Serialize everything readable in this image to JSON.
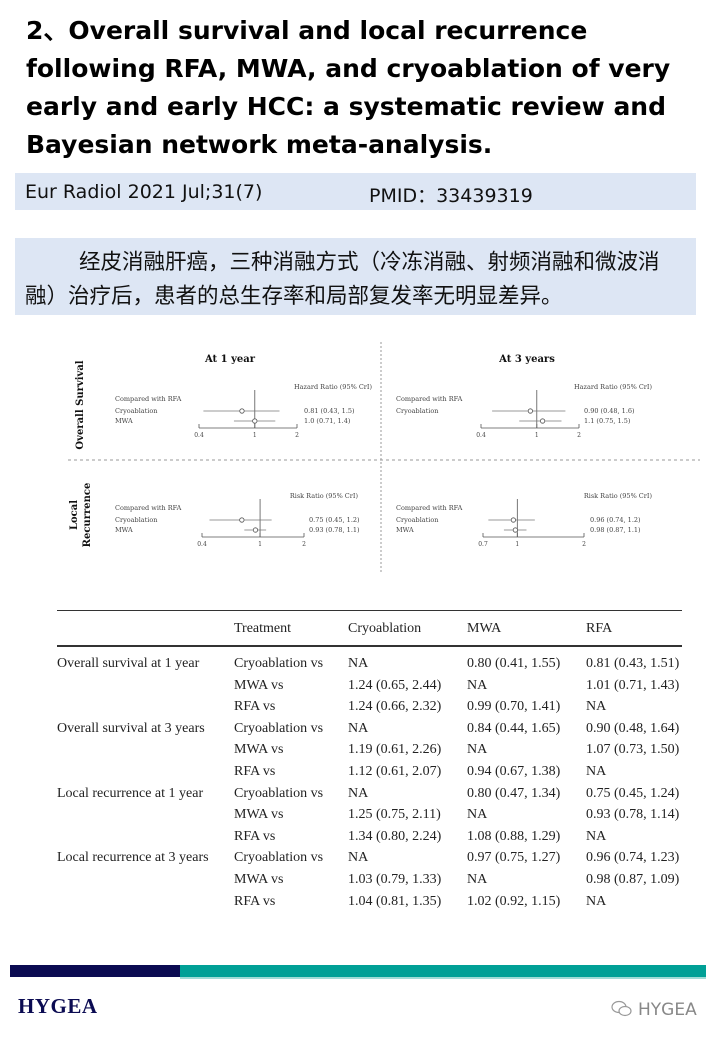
{
  "header": {
    "title": "2、Overall survival and local recurrence following RFA, MWA, and cryoablation of very early and early HCC: a systematic review and Bayesian network meta-analysis.",
    "journal": "Eur Radiol 2021 Jul;31(7)",
    "pmid": "PMID：33439319"
  },
  "summary": "经皮消融肝癌，三种消融方式（冷冻消融、射频消融和微波消融）治疗后，患者的总生存率和局部复发率无明显差异。",
  "chart_data": [
    {
      "type": "forest",
      "panel": "Overall Survival",
      "title": "At 1 year",
      "section_label": "Overall Survival",
      "compare_label": "Compared with RFA",
      "measure_label": "Hazard Ratio (95% CrI)",
      "x_scale": "log",
      "ticks": [
        0.4,
        1,
        2
      ],
      "xlim": [
        0.4,
        2
      ],
      "rows": [
        {
          "label": "Cryoablation",
          "est": 0.81,
          "lo": 0.43,
          "hi": 1.5,
          "text": "0.81 (0.43, 1.5)"
        },
        {
          "label": "MWA",
          "est": 1.0,
          "lo": 0.71,
          "hi": 1.4,
          "text": "1.0 (0.71, 1.4)"
        }
      ]
    },
    {
      "type": "forest",
      "panel": "Overall Survival",
      "title": "At 3 years",
      "section_label": "",
      "compare_label": "Compared with RFA",
      "measure_label": "Hazard Ratio (95% CrI)",
      "x_scale": "log",
      "ticks": [
        0.4,
        1,
        2
      ],
      "xlim": [
        0.4,
        2
      ],
      "rows": [
        {
          "label": "Cryoablation",
          "est": 0.9,
          "lo": 0.48,
          "hi": 1.6,
          "text": "0.90 (0.48, 1.6)"
        },
        {
          "label": "",
          "est": 1.1,
          "lo": 0.75,
          "hi": 1.5,
          "text": "1.1 (0.75, 1.5)"
        }
      ]
    },
    {
      "type": "forest",
      "panel": "Local Recurrence",
      "title": "",
      "section_label": "Local Recurrence",
      "compare_label": "Compared with RFA",
      "measure_label": "Risk Ratio (95% CrI)",
      "x_scale": "log",
      "ticks": [
        0.4,
        1,
        2
      ],
      "xlim": [
        0.4,
        2
      ],
      "rows": [
        {
          "label": "Cryoablation",
          "est": 0.75,
          "lo": 0.45,
          "hi": 1.2,
          "text": "0.75 (0.45, 1.2)"
        },
        {
          "label": "MWA",
          "est": 0.93,
          "lo": 0.78,
          "hi": 1.1,
          "text": "0.93 (0.78, 1.1)"
        }
      ]
    },
    {
      "type": "forest",
      "panel": "Local Recurrence",
      "title": "",
      "section_label": "",
      "compare_label": "Compared with RFA",
      "measure_label": "Risk Ratio (95% CrI)",
      "x_scale": "log",
      "ticks": [
        0.7,
        1,
        2
      ],
      "xlim": [
        0.7,
        2
      ],
      "rows": [
        {
          "label": "Cryoablation",
          "est": 0.96,
          "lo": 0.74,
          "hi": 1.2,
          "text": "0.96 (0.74, 1.2)"
        },
        {
          "label": "MWA",
          "est": 0.98,
          "lo": 0.87,
          "hi": 1.1,
          "text": "0.98 (0.87, 1.1)"
        }
      ]
    }
  ],
  "table": {
    "headers": [
      "",
      "Treatment",
      "Cryoablation",
      "MWA",
      "RFA"
    ],
    "rows": [
      [
        "Overall survival at 1 year",
        "Cryoablation vs",
        "NA",
        "0.80 (0.41, 1.55)",
        "0.81 (0.43, 1.51)"
      ],
      [
        "",
        "MWA vs",
        "1.24 (0.65, 2.44)",
        "NA",
        "1.01 (0.71, 1.43)"
      ],
      [
        "",
        "RFA vs",
        "1.24 (0.66, 2.32)",
        "0.99 (0.70, 1.41)",
        "NA"
      ],
      [
        "Overall survival at 3 years",
        "Cryoablation vs",
        "NA",
        "0.84 (0.44, 1.65)",
        "0.90 (0.48, 1.64)"
      ],
      [
        "",
        "MWA vs",
        "1.19 (0.61, 2.26)",
        "NA",
        "1.07 (0.73, 1.50)"
      ],
      [
        "",
        "RFA vs",
        "1.12 (0.61, 2.07)",
        "0.94 (0.67, 1.38)",
        "NA"
      ],
      [
        "Local recurrence at 1 year",
        "Cryoablation vs",
        "NA",
        "0.80 (0.47, 1.34)",
        "0.75 (0.45, 1.24)"
      ],
      [
        "",
        "MWA vs",
        "1.25 (0.75, 2.11)",
        "NA",
        "0.93 (0.78, 1.14)"
      ],
      [
        "",
        "RFA vs",
        "1.34 (0.80, 2.24)",
        "1.08 (0.88, 1.29)",
        "NA"
      ],
      [
        "Local recurrence at 3 years",
        "Cryoablation vs",
        "NA",
        "0.97 (0.75, 1.27)",
        "0.96 (0.74, 1.23)"
      ],
      [
        "",
        "MWA vs",
        "1.03 (0.79, 1.33)",
        "NA",
        "0.98 (0.87, 1.09)"
      ],
      [
        "",
        "RFA vs",
        "1.04 (0.81, 1.35)",
        "1.02 (0.92, 1.15)",
        "NA"
      ]
    ]
  },
  "footer": {
    "logo": "HYGEA",
    "watermark": "HYGEA",
    "colors": {
      "navy": "#0b0b52",
      "teal": "#00a096"
    }
  }
}
